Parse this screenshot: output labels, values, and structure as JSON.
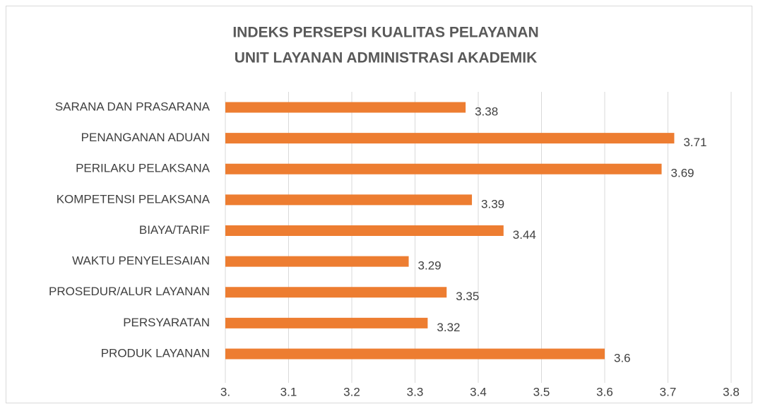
{
  "chart_data": {
    "type": "bar",
    "orientation": "horizontal",
    "title": [
      "INDEKS PERSEPSI KUALITAS PELAYANAN",
      "UNIT LAYANAN ADMINISTRASI AKADEMIK"
    ],
    "categories": [
      "SARANA DAN PRASARANA",
      "PENANGANAN ADUAN",
      "PERILAKU PELAKSANA",
      "KOMPETENSI PELAKSANA",
      "BIAYA/TARIF",
      "WAKTU PENYELESAIAN",
      "PROSEDUR/ALUR LAYANAN",
      "PERSYARATAN",
      "PRODUK LAYANAN"
    ],
    "values": [
      3.38,
      3.71,
      3.69,
      3.39,
      3.44,
      3.29,
      3.35,
      3.32,
      3.6
    ],
    "color": "#ed7d31",
    "xlim": [
      3,
      3.8
    ],
    "xticks": [
      {
        "value": 3,
        "label": "3."
      },
      3.1,
      3.2,
      3.3,
      3.4,
      3.5,
      3.6,
      3.7,
      3.8
    ],
    "grid": true
  }
}
